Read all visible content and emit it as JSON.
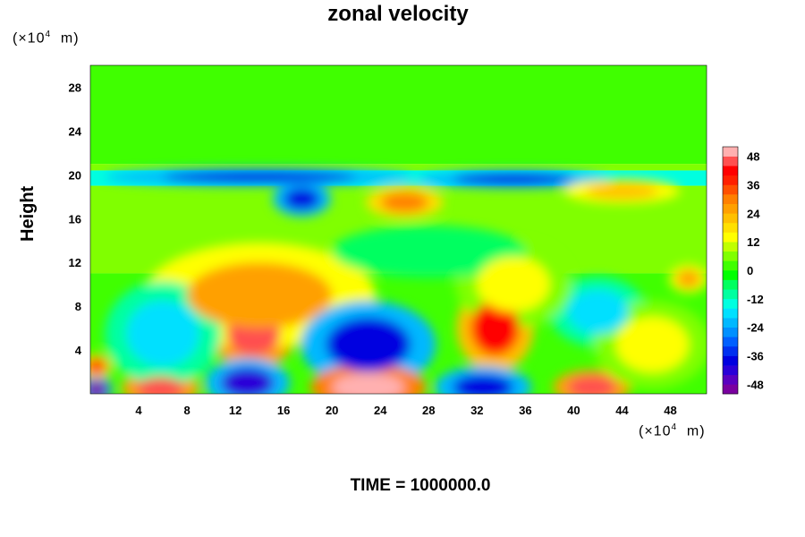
{
  "title": "zonal velocity",
  "time_label": "TIME = 1000000.0",
  "y_unit": "(×10",
  "x_unit": "(×10",
  "unit_exp": "4",
  "unit_tail": "m)",
  "chart_data": {
    "type": "heatmap",
    "title": "zonal velocity",
    "ylabel": "Height",
    "xlabel": "",
    "x_unit": "×10^4 m",
    "y_unit": "×10^4 m",
    "xlim": [
      0,
      51
    ],
    "ylim": [
      0,
      30
    ],
    "x_ticks": [
      4,
      8,
      12,
      16,
      20,
      24,
      28,
      32,
      36,
      40,
      44,
      48
    ],
    "y_ticks": [
      4,
      8,
      12,
      16,
      20,
      24,
      28
    ],
    "colorbar": {
      "min": -52,
      "max": 52,
      "step": 4,
      "ticks": [
        48,
        36,
        24,
        12,
        0,
        -12,
        -24,
        -36,
        -48
      ],
      "colors": [
        "#7a00a0",
        "#5a00c0",
        "#2a00d8",
        "#0000e0",
        "#0030f0",
        "#0060ff",
        "#0090ff",
        "#00b8ff",
        "#00e0ff",
        "#00ffe0",
        "#00ffa0",
        "#00ff60",
        "#00ff00",
        "#40ff00",
        "#80ff00",
        "#c0ff00",
        "#ffff00",
        "#ffe000",
        "#ffc000",
        "#ffa000",
        "#ff8000",
        "#ff5000",
        "#ff2000",
        "#ff0000",
        "#ff5050",
        "#ffb0b0"
      ]
    },
    "features": [
      {
        "x": 13.5,
        "y": 5.5,
        "value": 44,
        "rx": 2.2,
        "ry": 2.0
      },
      {
        "x": 14,
        "y": 9,
        "value": 24,
        "rx": 6,
        "ry": 3
      },
      {
        "x": 33.5,
        "y": 6,
        "value": 40,
        "rx": 2.0,
        "ry": 2.5
      },
      {
        "x": 23,
        "y": 4.5,
        "value": -40,
        "rx": 3.5,
        "ry": 2.5
      },
      {
        "x": 23,
        "y": 0.6,
        "value": 52,
        "rx": 3.0,
        "ry": 1.3
      },
      {
        "x": 5.8,
        "y": 0.5,
        "value": 46,
        "rx": 2.0,
        "ry": 1.0
      },
      {
        "x": 41.5,
        "y": 0.6,
        "value": 44,
        "rx": 2.0,
        "ry": 1.0
      },
      {
        "x": 13,
        "y": 1.0,
        "value": -42,
        "rx": 2.2,
        "ry": 1.4
      },
      {
        "x": 32.5,
        "y": 0.6,
        "value": -40,
        "rx": 2.5,
        "ry": 1.2
      },
      {
        "x": 0.5,
        "y": 0.4,
        "value": -50,
        "rx": 0.8,
        "ry": 0.8
      },
      {
        "x": 17.5,
        "y": 17.8,
        "value": -40,
        "rx": 1.5,
        "ry": 1.0
      },
      {
        "x": 26,
        "y": 17.5,
        "value": 30,
        "rx": 2.0,
        "ry": 0.9
      },
      {
        "x": 14,
        "y": 19.8,
        "value": -38,
        "rx": 8,
        "ry": 0.5
      },
      {
        "x": 35,
        "y": 19.6,
        "value": -38,
        "rx": 5,
        "ry": 0.5
      },
      {
        "x": 44,
        "y": 18.5,
        "value": 22,
        "rx": 3,
        "ry": 0.7
      },
      {
        "x": 42,
        "y": 7.5,
        "value": -18,
        "rx": 2.5,
        "ry": 2.0
      },
      {
        "x": 35,
        "y": 10,
        "value": 14,
        "rx": 3,
        "ry": 2.5
      },
      {
        "x": 46.5,
        "y": 4.5,
        "value": 12,
        "rx": 3,
        "ry": 2.5
      },
      {
        "x": 6,
        "y": 5.5,
        "value": -20,
        "rx": 3,
        "ry": 3
      },
      {
        "x": 0.5,
        "y": 2.5,
        "value": 36,
        "rx": 0.8,
        "ry": 0.7
      },
      {
        "x": 28,
        "y": 13,
        "value": -8,
        "rx": 5,
        "ry": 1.5
      },
      {
        "x": 49.5,
        "y": 10.5,
        "value": 24,
        "rx": 1,
        "ry": 0.8
      }
    ]
  }
}
